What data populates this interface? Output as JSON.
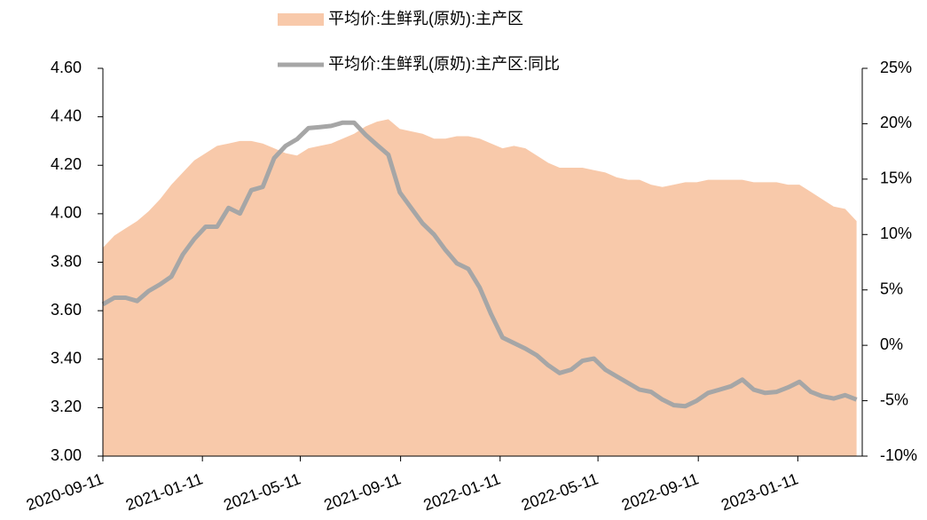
{
  "chart_data": {
    "type": "area_line",
    "x": [
      "2020-09-11",
      "2020-09-25",
      "2020-10-09",
      "2020-10-23",
      "2020-11-06",
      "2020-11-20",
      "2020-12-04",
      "2020-12-18",
      "2021-01-01",
      "2021-01-15",
      "2021-01-29",
      "2021-02-12",
      "2021-02-26",
      "2021-03-12",
      "2021-03-26",
      "2021-04-09",
      "2021-04-23",
      "2021-05-07",
      "2021-05-21",
      "2021-06-04",
      "2021-06-18",
      "2021-07-02",
      "2021-07-16",
      "2021-07-30",
      "2021-08-13",
      "2021-08-27",
      "2021-09-10",
      "2021-09-24",
      "2021-10-08",
      "2021-10-22",
      "2021-11-05",
      "2021-11-19",
      "2021-12-03",
      "2021-12-17",
      "2021-12-31",
      "2022-01-14",
      "2022-01-28",
      "2022-02-11",
      "2022-02-25",
      "2022-03-11",
      "2022-03-25",
      "2022-04-08",
      "2022-04-22",
      "2022-05-06",
      "2022-05-20",
      "2022-06-03",
      "2022-06-17",
      "2022-07-01",
      "2022-07-15",
      "2022-07-29",
      "2022-08-12",
      "2022-08-26",
      "2022-09-09",
      "2022-09-23",
      "2022-10-07",
      "2022-10-21",
      "2022-11-04",
      "2022-11-18",
      "2022-12-02",
      "2022-12-16",
      "2022-12-30",
      "2023-01-13",
      "2023-01-27",
      "2023-02-10",
      "2023-02-24",
      "2023-03-10",
      "2023-03-24"
    ],
    "series": [
      {
        "name": "平均价:生鲜乳(原奶):主产区",
        "kind": "area",
        "color": "#f8c9aa",
        "axis": "y",
        "values": [
          3.86,
          3.91,
          3.94,
          3.97,
          4.01,
          4.06,
          4.12,
          4.17,
          4.22,
          4.25,
          4.28,
          4.29,
          4.3,
          4.3,
          4.29,
          4.27,
          4.25,
          4.24,
          4.27,
          4.28,
          4.29,
          4.31,
          4.33,
          4.36,
          4.38,
          4.39,
          4.35,
          4.34,
          4.33,
          4.31,
          4.31,
          4.32,
          4.32,
          4.31,
          4.29,
          4.27,
          4.28,
          4.27,
          4.24,
          4.21,
          4.19,
          4.19,
          4.19,
          4.18,
          4.17,
          4.15,
          4.14,
          4.14,
          4.12,
          4.11,
          4.12,
          4.13,
          4.13,
          4.14,
          4.14,
          4.14,
          4.14,
          4.13,
          4.13,
          4.13,
          4.12,
          4.12,
          4.09,
          4.06,
          4.03,
          4.02,
          3.97
        ]
      },
      {
        "name": "平均价:生鲜乳(原奶):主产区:同比",
        "kind": "line",
        "color": "#a6a6a6",
        "axis": "y2",
        "values": [
          3.7,
          4.3,
          4.3,
          4.0,
          4.9,
          5.5,
          6.2,
          8.2,
          9.6,
          10.7,
          10.7,
          12.4,
          11.9,
          14.0,
          14.3,
          16.9,
          18.0,
          18.6,
          19.6,
          19.7,
          19.8,
          20.1,
          20.1,
          19.0,
          18.1,
          17.2,
          13.8,
          12.4,
          11.0,
          10.0,
          8.6,
          7.4,
          6.9,
          5.2,
          2.8,
          0.7,
          0.2,
          -0.3,
          -0.9,
          -1.8,
          -2.5,
          -2.2,
          -1.4,
          -1.2,
          -2.2,
          -2.8,
          -3.4,
          -4.0,
          -4.2,
          -4.9,
          -5.4,
          -5.5,
          -5.0,
          -4.3,
          -4.0,
          -3.7,
          -3.1,
          -4.0,
          -4.3,
          -4.2,
          -3.8,
          -3.3,
          -4.2,
          -4.6,
          -4.8,
          -4.5,
          -4.9
        ]
      }
    ],
    "xlim": [
      "2020-09-11",
      "2023-03-31"
    ],
    "xticks": [
      "2020-09-11",
      "2021-01-11",
      "2021-05-11",
      "2021-09-11",
      "2022-01-11",
      "2022-05-11",
      "2022-09-11",
      "2023-01-11"
    ],
    "ylim": [
      3.0,
      4.6
    ],
    "yticks": [
      {
        "value": 3.0,
        "label": "3.00"
      },
      {
        "value": 3.2,
        "label": "3.20"
      },
      {
        "value": 3.4,
        "label": "3.40"
      },
      {
        "value": 3.6,
        "label": "3.60"
      },
      {
        "value": 3.8,
        "label": "3.80"
      },
      {
        "value": 4.0,
        "label": "4.00"
      },
      {
        "value": 4.2,
        "label": "4.20"
      },
      {
        "value": 4.4,
        "label": "4.40"
      },
      {
        "value": 4.6,
        "label": "4.60"
      }
    ],
    "y2lim": [
      -10,
      25
    ],
    "y2ticks": [
      {
        "value": -10,
        "label": "-10%"
      },
      {
        "value": -5,
        "label": "-5%"
      },
      {
        "value": 0,
        "label": "0%"
      },
      {
        "value": 5,
        "label": "5%"
      },
      {
        "value": 10,
        "label": "10%"
      },
      {
        "value": 15,
        "label": "15%"
      },
      {
        "value": 20,
        "label": "20%"
      },
      {
        "value": 25,
        "label": "25%"
      }
    ]
  }
}
